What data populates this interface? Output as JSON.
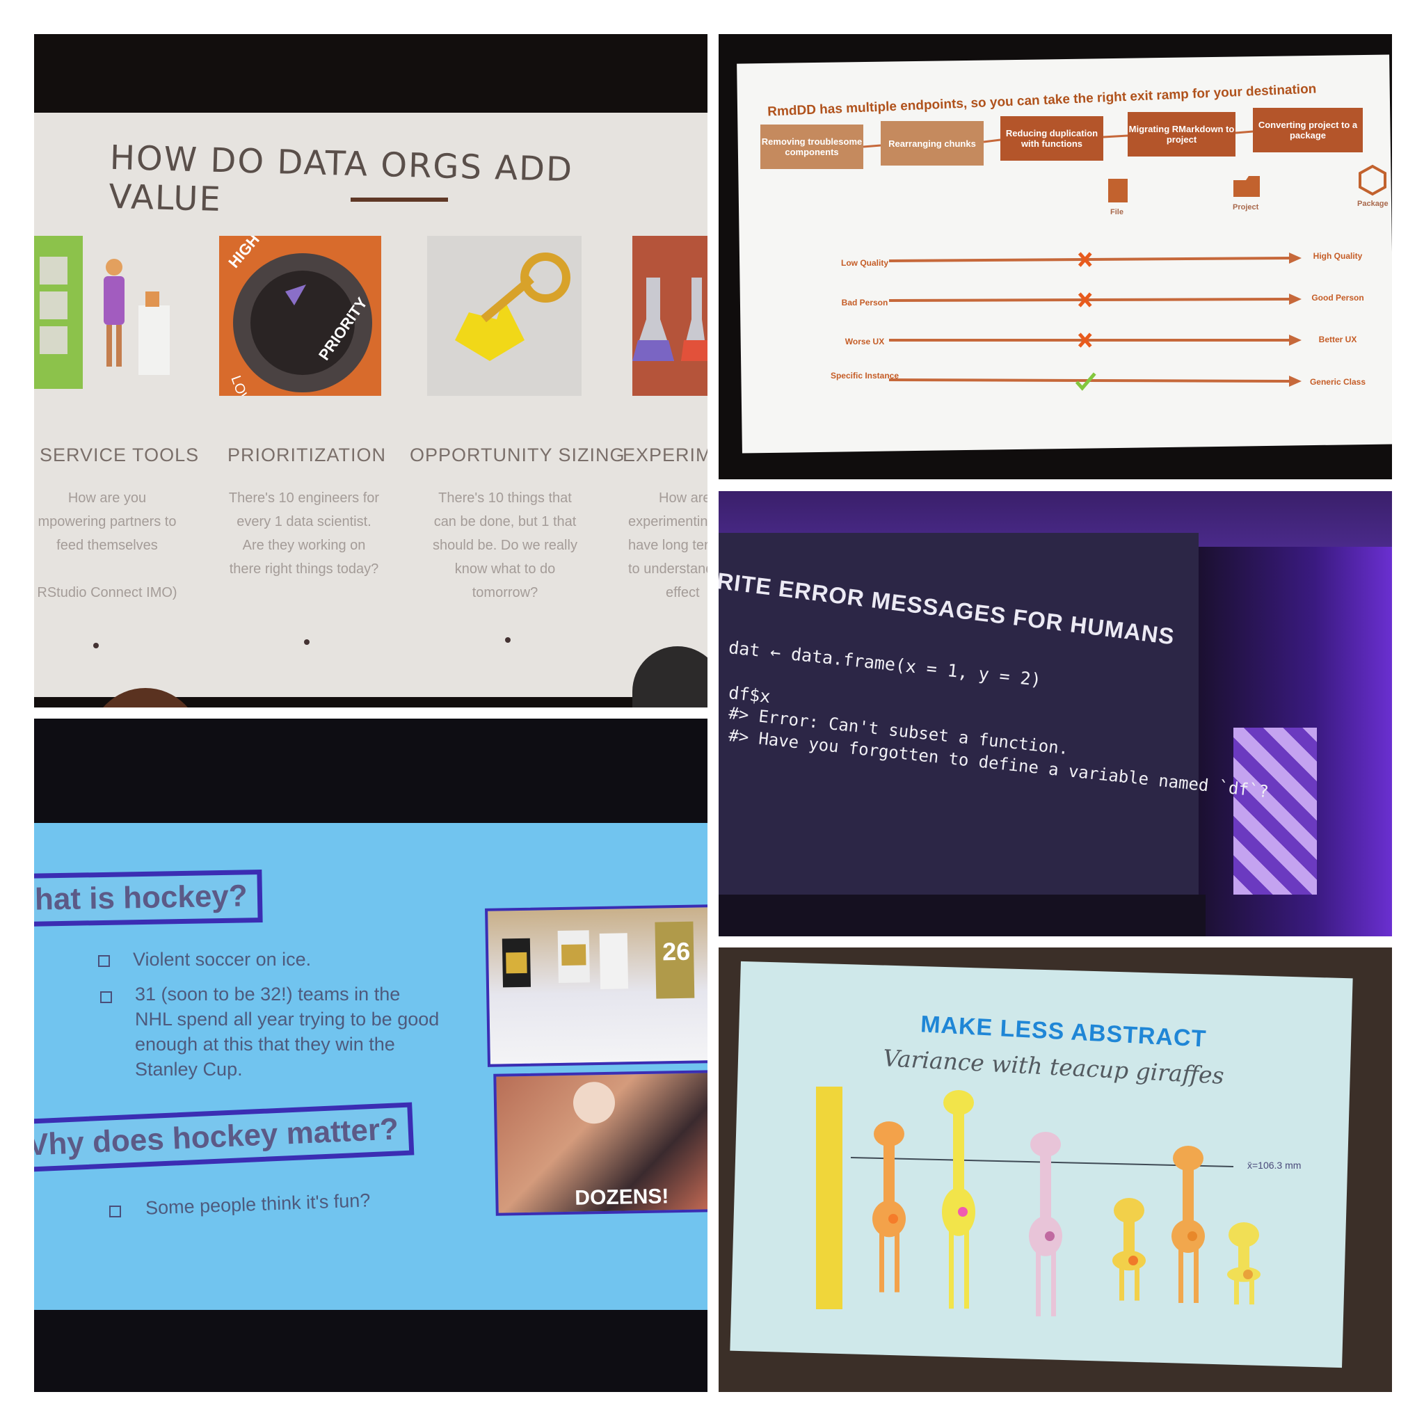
{
  "panel1": {
    "title": "HOW DO DATA ORGS ADD VALUE",
    "priority_tile": {
      "high": "HIGH",
      "priority": "PRIORITY",
      "low": "LOW"
    },
    "columns": [
      {
        "title": "SERVICE TOOLS",
        "lines": [
          "How are you",
          "mpowering partners to",
          "feed themselves",
          "",
          "RStudio Connect IMO)"
        ]
      },
      {
        "title": "PRIORITIZATION",
        "lines": [
          "There's 10 engineers for",
          "every 1 data scientist.",
          "Are they working on",
          "there right things today?"
        ]
      },
      {
        "title": "OPPORTUNITY SIZING",
        "lines": [
          "There's 10 things that",
          "can be done, but 1 that",
          "should be. Do we really",
          "know what to do",
          "tomorrow?"
        ]
      },
      {
        "title": "EXPERIME",
        "lines": [
          "How are",
          "experimentin",
          "have long ter",
          "to understand",
          "effect"
        ]
      }
    ]
  },
  "panel2": {
    "heading": "RmdDD has multiple endpoints, so you can take the right exit ramp for your destination",
    "steps": [
      "Removing troublesome components",
      "Rearranging chunks",
      "Reducing duplication with functions",
      "Migrating RMarkdown to project",
      "Converting project to a package"
    ],
    "endpoints": [
      "File",
      "Project",
      "Package"
    ],
    "scales": [
      {
        "left": "Low Quality",
        "right": "High Quality",
        "mark": "x",
        "position": 0.49
      },
      {
        "left": "Bad Person",
        "right": "Good Person",
        "mark": "x",
        "position": 0.49
      },
      {
        "left": "Worse UX",
        "right": "Better UX",
        "mark": "x",
        "position": 0.49
      },
      {
        "left": "Specific Instance",
        "right": "Generic Class",
        "mark": "check",
        "position": 0.49
      }
    ],
    "colors": {
      "light_box": "#c58a5e",
      "dark_box": "#b4552a",
      "arrow": "#c6683a",
      "cross": "#e85a1c",
      "check": "#83c73e"
    }
  },
  "panel3": {
    "title": "RITE ERROR MESSAGES FOR HUMANS",
    "code_lines": [
      {
        "text": "dat ← data.frame(x = 1, y = 2)"
      },
      {
        "text": "df$x"
      },
      {
        "text": "#> Error: Can't subset a function."
      },
      {
        "text": "#> Have you forgotten to define a variable named `df`?"
      }
    ],
    "highlight_numbers": [
      "1",
      "2"
    ]
  },
  "panel4": {
    "q1": "hat is hockey?",
    "bullets1": [
      "Violent soccer on ice.",
      "31 (soon to be 32!) teams in the NHL spend all year trying to be good enough at this that they win the Stanley Cup."
    ],
    "q2": "Vhy does hockey matter?",
    "bullets2": [
      "Some people think it's fun?"
    ],
    "photo_caption": "DOZENS!",
    "jersey_number": "26"
  },
  "panel5": {
    "title": "MAKE LESS ABSTRACT",
    "subtitle": "Variance with teacup giraffes",
    "mean_label": "x̄=106.3 mm"
  }
}
